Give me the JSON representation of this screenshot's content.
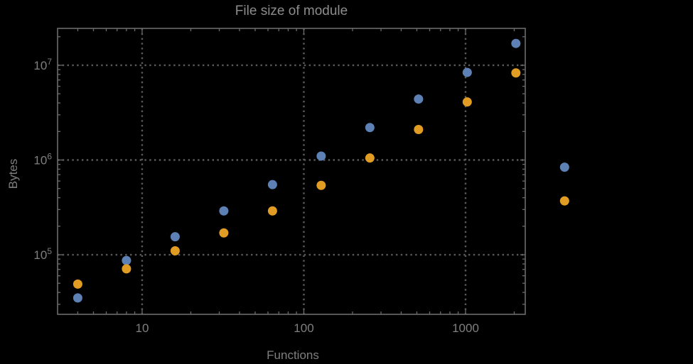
{
  "window": {
    "background": "#000000"
  },
  "style": {
    "frame_color": "#6b6b6b",
    "grid_color": "#5a5a5a",
    "title_color": "#8c8c8c",
    "label_color": "#7f7f7f"
  },
  "chart_data": {
    "type": "scatter",
    "title": "File size of module",
    "xlabel": "Functions",
    "ylabel": "Bytes",
    "x_scale": "log",
    "y_scale": "log",
    "xlim": [
      3,
      2340
    ],
    "ylim": [
      23500,
      24500000
    ],
    "grid": "dotted gridlines at labeled decade ticks only",
    "legend": "none",
    "marker": "filled circle",
    "x": [
      4,
      8,
      16,
      32,
      64,
      128,
      256,
      512,
      1024,
      2048,
      4096
    ],
    "series": [
      {
        "name": "series-1-blue",
        "color": "#5E81B5",
        "values": [
          35000,
          87000,
          155000,
          290000,
          550000,
          1100000,
          2200000,
          4400000,
          8400000,
          17000000,
          840000
        ]
      },
      {
        "name": "series-2-orange",
        "color": "#E19C24",
        "values": [
          49000,
          71000,
          110000,
          170000,
          290000,
          540000,
          1050000,
          2100000,
          4100000,
          8300000,
          370000
        ]
      }
    ],
    "x_ticks": [
      {
        "value": 10,
        "label": "10"
      },
      {
        "value": 100,
        "label": "100"
      },
      {
        "value": 1000,
        "label": "1000"
      }
    ],
    "y_ticks": [
      {
        "value": 100000,
        "base": "10",
        "exponent": "5"
      },
      {
        "value": 1000000,
        "base": "10",
        "exponent": "6"
      },
      {
        "value": 10000000,
        "base": "10",
        "exponent": "7"
      }
    ]
  }
}
